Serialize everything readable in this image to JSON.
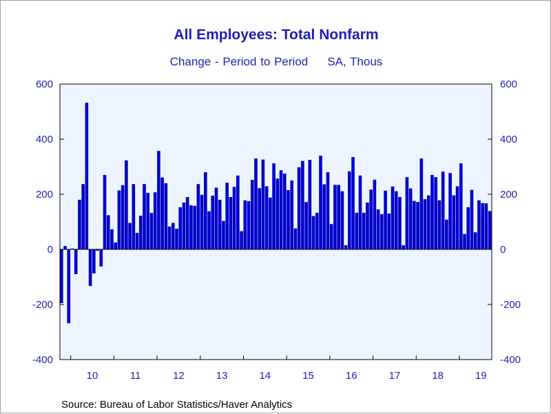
{
  "chart_data": {
    "type": "bar",
    "title": "All Employees: Total Nonfarm",
    "subtitle_left": "Change - Period to Period",
    "subtitle_right": "SA, Thous",
    "source": "Source:  Bureau of Labor Statistics/Haver Analytics",
    "ylim": [
      -400,
      600
    ],
    "yticks": [
      600,
      400,
      200,
      0,
      -200,
      -400
    ],
    "ytick_labels": [
      "600",
      "400",
      "200",
      "0",
      "-200",
      "-400"
    ],
    "x_labels": [
      "10",
      "11",
      "12",
      "13",
      "14",
      "15",
      "16",
      "17",
      "18",
      "19"
    ],
    "start": "2009-09",
    "end": "2019-06",
    "colors": {
      "bar": "#0000cc",
      "plot_bg": "#eef4ff",
      "text": "#1f1fb4"
    },
    "values": [
      -195,
      12,
      -268,
      3,
      -90,
      180,
      237,
      532,
      -133,
      -87,
      -5,
      -62,
      270,
      124,
      73,
      25,
      214,
      233,
      323,
      96,
      237,
      60,
      122,
      237,
      205,
      132,
      207,
      357,
      261,
      240,
      83,
      96,
      75,
      153,
      170,
      190,
      160,
      158,
      237,
      198,
      280,
      138,
      195,
      224,
      180,
      103,
      242,
      190,
      227,
      268,
      66,
      178,
      175,
      252,
      330,
      222,
      326,
      229,
      188,
      312,
      257,
      287,
      275,
      215,
      250,
      76,
      298,
      321,
      172,
      325,
      121,
      133,
      340,
      236,
      280,
      92,
      234,
      234,
      211,
      15,
      283,
      335,
      133,
      268,
      133,
      170,
      217,
      253,
      145,
      128,
      213,
      130,
      228,
      211,
      190,
      15,
      262,
      221,
      176,
      172,
      330,
      182,
      196,
      270,
      262,
      178,
      282,
      108,
      277,
      196,
      229,
      312,
      56,
      153,
      216,
      62,
      178,
      168,
      167,
      139
    ]
  }
}
